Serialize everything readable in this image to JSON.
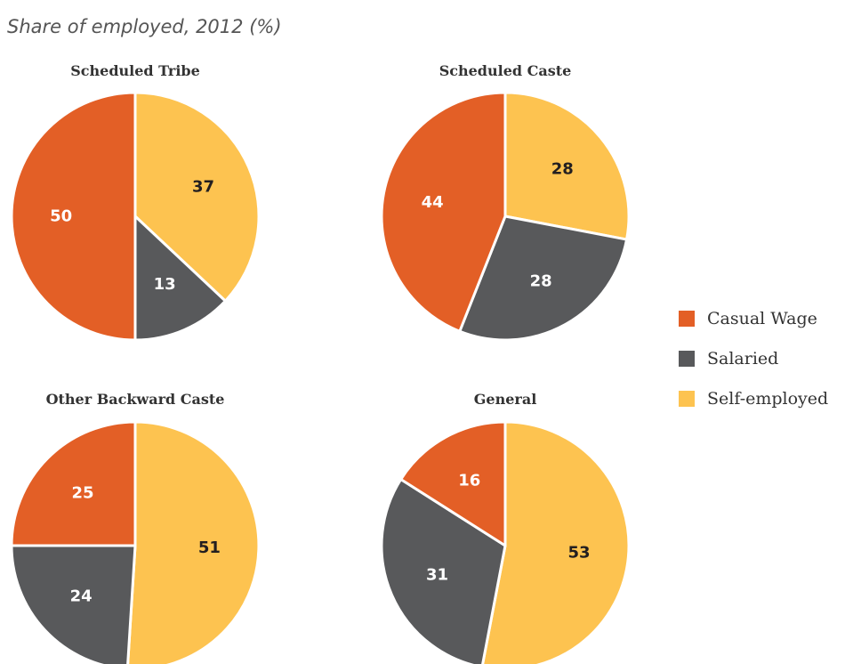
{
  "subtitle": "Share of employed, 2012 (%)",
  "chart_data": {
    "type": "pie",
    "categories": [
      "Casual Wage",
      "Salaried",
      "Self-employed"
    ],
    "colors": {
      "Casual Wage": "#E35F26",
      "Salaried": "#58595B",
      "Self-employed": "#FDC350"
    },
    "label_colors": {
      "Casual Wage": "#ffffff",
      "Salaried": "#ffffff",
      "Self-employed": "#231F20"
    },
    "legend_position": "right",
    "pies": [
      {
        "title": "Scheduled Tribe",
        "values": {
          "Casual Wage": 50,
          "Salaried": 13,
          "Self-employed": 37
        }
      },
      {
        "title": "Scheduled Caste",
        "values": {
          "Casual Wage": 44,
          "Salaried": 28,
          "Self-employed": 28
        }
      },
      {
        "title": "Other Backward Caste",
        "values": {
          "Casual Wage": 25,
          "Salaried": 24,
          "Self-employed": 51
        }
      },
      {
        "title": "General",
        "values": {
          "Casual Wage": 16,
          "Salaried": 31,
          "Self-employed": 53
        }
      }
    ]
  }
}
